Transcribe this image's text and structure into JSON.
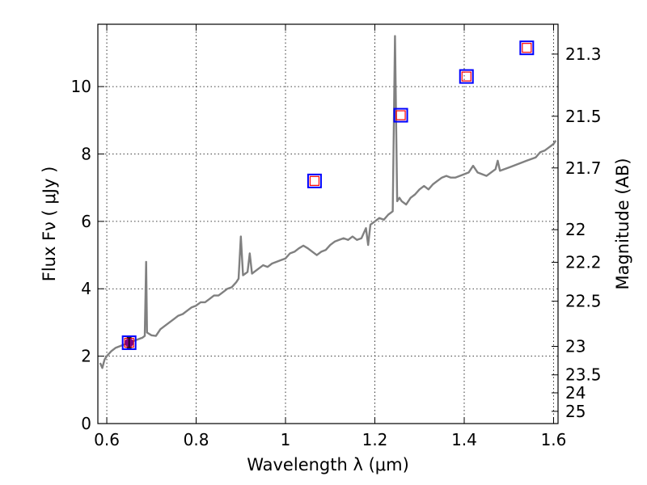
{
  "chart_data": {
    "type": "line",
    "xlabel": "Wavelength  λ (μm)",
    "ylabel": "Flux  Fν  ( μJy )",
    "y2label": "Magnitude (AB)",
    "xlim": [
      0.58,
      1.61
    ],
    "ylim": [
      0,
      11.85
    ],
    "grid": true,
    "x_ticks": [
      {
        "value": 0.6,
        "label": "0.6"
      },
      {
        "value": 0.8,
        "label": "0.8"
      },
      {
        "value": 1.0,
        "label": "1"
      },
      {
        "value": 1.2,
        "label": "1.2"
      },
      {
        "value": 1.4,
        "label": "1.4"
      },
      {
        "value": 1.6,
        "label": "1.6"
      }
    ],
    "y_ticks": [
      {
        "value": 0,
        "label": "0"
      },
      {
        "value": 2,
        "label": "2"
      },
      {
        "value": 4,
        "label": "4"
      },
      {
        "value": 6,
        "label": "6"
      },
      {
        "value": 8,
        "label": "8"
      },
      {
        "value": 10,
        "label": "10"
      }
    ],
    "y2_ticks": [
      {
        "value": 21.3,
        "label": "21.3"
      },
      {
        "value": 21.5,
        "label": "21.5"
      },
      {
        "value": 21.7,
        "label": "21.7"
      },
      {
        "value": 22.0,
        "label": "22"
      },
      {
        "value": 22.2,
        "label": "22.2"
      },
      {
        "value": 22.5,
        "label": "22.5"
      },
      {
        "value": 23.0,
        "label": "23"
      },
      {
        "value": 23.5,
        "label": "23.5"
      },
      {
        "value": 24.0,
        "label": "24"
      },
      {
        "value": 25.0,
        "label": "25"
      }
    ],
    "series": [
      {
        "kind": "line",
        "color": "#808080",
        "points": [
          [
            0.585,
            1.8
          ],
          [
            0.59,
            1.65
          ],
          [
            0.595,
            1.9
          ],
          [
            0.6,
            2.0
          ],
          [
            0.61,
            2.15
          ],
          [
            0.62,
            2.25
          ],
          [
            0.63,
            2.3
          ],
          [
            0.64,
            2.35
          ],
          [
            0.65,
            2.4
          ],
          [
            0.66,
            2.45
          ],
          [
            0.67,
            2.5
          ],
          [
            0.68,
            2.55
          ],
          [
            0.685,
            2.6
          ],
          [
            0.688,
            4.8
          ],
          [
            0.69,
            2.7
          ],
          [
            0.7,
            2.62
          ],
          [
            0.71,
            2.6
          ],
          [
            0.72,
            2.8
          ],
          [
            0.73,
            2.9
          ],
          [
            0.74,
            3.0
          ],
          [
            0.75,
            3.1
          ],
          [
            0.76,
            3.2
          ],
          [
            0.77,
            3.25
          ],
          [
            0.78,
            3.35
          ],
          [
            0.79,
            3.45
          ],
          [
            0.8,
            3.5
          ],
          [
            0.81,
            3.6
          ],
          [
            0.82,
            3.6
          ],
          [
            0.83,
            3.7
          ],
          [
            0.84,
            3.8
          ],
          [
            0.85,
            3.8
          ],
          [
            0.86,
            3.9
          ],
          [
            0.87,
            4.0
          ],
          [
            0.88,
            4.05
          ],
          [
            0.89,
            4.2
          ],
          [
            0.895,
            4.3
          ],
          [
            0.9,
            5.55
          ],
          [
            0.905,
            4.4
          ],
          [
            0.91,
            4.45
          ],
          [
            0.915,
            4.5
          ],
          [
            0.92,
            5.05
          ],
          [
            0.925,
            4.45
          ],
          [
            0.93,
            4.5
          ],
          [
            0.94,
            4.6
          ],
          [
            0.95,
            4.7
          ],
          [
            0.96,
            4.65
          ],
          [
            0.97,
            4.75
          ],
          [
            0.98,
            4.8
          ],
          [
            0.99,
            4.85
          ],
          [
            1.0,
            4.9
          ],
          [
            1.01,
            5.05
          ],
          [
            1.02,
            5.1
          ],
          [
            1.03,
            5.2
          ],
          [
            1.04,
            5.28
          ],
          [
            1.05,
            5.2
          ],
          [
            1.06,
            5.1
          ],
          [
            1.07,
            5.0
          ],
          [
            1.08,
            5.1
          ],
          [
            1.09,
            5.15
          ],
          [
            1.1,
            5.3
          ],
          [
            1.11,
            5.4
          ],
          [
            1.12,
            5.45
          ],
          [
            1.13,
            5.5
          ],
          [
            1.14,
            5.45
          ],
          [
            1.15,
            5.55
          ],
          [
            1.16,
            5.45
          ],
          [
            1.17,
            5.5
          ],
          [
            1.18,
            5.8
          ],
          [
            1.185,
            5.3
          ],
          [
            1.19,
            5.9
          ],
          [
            1.2,
            6.0
          ],
          [
            1.21,
            6.1
          ],
          [
            1.22,
            6.05
          ],
          [
            1.23,
            6.2
          ],
          [
            1.24,
            6.3
          ],
          [
            1.245,
            11.5
          ],
          [
            1.25,
            6.6
          ],
          [
            1.255,
            6.7
          ],
          [
            1.26,
            6.6
          ],
          [
            1.27,
            6.5
          ],
          [
            1.28,
            6.7
          ],
          [
            1.29,
            6.8
          ],
          [
            1.3,
            6.95
          ],
          [
            1.31,
            7.05
          ],
          [
            1.32,
            6.95
          ],
          [
            1.33,
            7.1
          ],
          [
            1.34,
            7.2
          ],
          [
            1.35,
            7.3
          ],
          [
            1.36,
            7.35
          ],
          [
            1.37,
            7.3
          ],
          [
            1.38,
            7.3
          ],
          [
            1.39,
            7.35
          ],
          [
            1.4,
            7.4
          ],
          [
            1.41,
            7.45
          ],
          [
            1.42,
            7.65
          ],
          [
            1.43,
            7.45
          ],
          [
            1.44,
            7.4
          ],
          [
            1.45,
            7.35
          ],
          [
            1.46,
            7.45
          ],
          [
            1.47,
            7.55
          ],
          [
            1.475,
            7.8
          ],
          [
            1.48,
            7.5
          ],
          [
            1.49,
            7.55
          ],
          [
            1.5,
            7.6
          ],
          [
            1.51,
            7.65
          ],
          [
            1.52,
            7.7
          ],
          [
            1.53,
            7.75
          ],
          [
            1.54,
            7.8
          ],
          [
            1.55,
            7.85
          ],
          [
            1.56,
            7.9
          ],
          [
            1.57,
            8.05
          ],
          [
            1.58,
            8.1
          ],
          [
            1.59,
            8.2
          ],
          [
            1.6,
            8.3
          ],
          [
            1.605,
            8.4
          ]
        ]
      },
      {
        "kind": "squares",
        "stroke_outer": "#0000ff",
        "stroke_inner": "#ff0000",
        "points": [
          [
            0.65,
            2.4
          ],
          [
            1.065,
            7.2
          ],
          [
            1.258,
            9.15
          ],
          [
            1.405,
            10.3
          ],
          [
            1.54,
            11.15
          ]
        ]
      },
      {
        "kind": "errorbar",
        "color": "#800080",
        "points": [
          {
            "x": 0.65,
            "y": 2.4,
            "yerr": 0.15
          }
        ]
      }
    ]
  }
}
